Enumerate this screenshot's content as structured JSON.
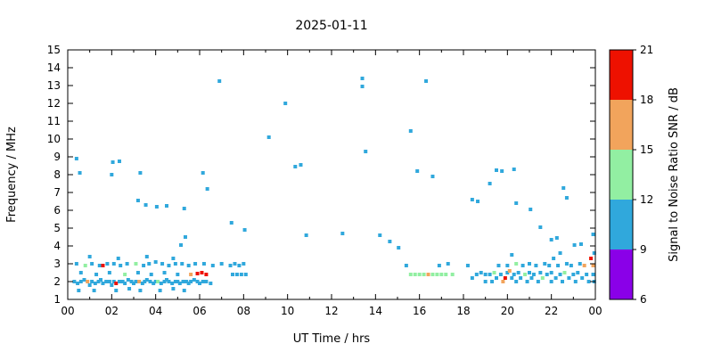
{
  "chart_data": {
    "type": "scatter",
    "title": "2025-01-11",
    "xlabel": "UT Time / hrs",
    "ylabel": "Frequency / MHz",
    "xlim": [
      0,
      24
    ],
    "ylim": [
      1,
      15
    ],
    "grid": false,
    "xticks": [
      0,
      2,
      4,
      6,
      8,
      10,
      12,
      14,
      16,
      18,
      20,
      22,
      24
    ],
    "xticklabels": [
      "00",
      "02",
      "04",
      "06",
      "08",
      "10",
      "12",
      "14",
      "16",
      "18",
      "20",
      "22",
      "00"
    ],
    "yticks": [
      1,
      2,
      3,
      4,
      5,
      6,
      7,
      8,
      9,
      10,
      11,
      12,
      13,
      14,
      15
    ],
    "colorbar": {
      "label": "Signal to Noise Ratio SNR / dB",
      "min": 6,
      "max": 21,
      "ticks": [
        6,
        9,
        12,
        15,
        18,
        21
      ],
      "position": "right",
      "bands": [
        {
          "from": 6,
          "to": 9,
          "color": "#8A00E8"
        },
        {
          "from": 9,
          "to": 12,
          "color": "#30A8DC"
        },
        {
          "from": 12,
          "to": 15,
          "color": "#92EFA2"
        },
        {
          "from": 15,
          "to": 18,
          "color": "#F2A45C"
        },
        {
          "from": 18,
          "to": 21,
          "color": "#EE1100"
        }
      ]
    },
    "points": [
      [
        0.4,
        8.9,
        10
      ],
      [
        0.55,
        8.1,
        10
      ],
      [
        2.05,
        8.7,
        10
      ],
      [
        2.35,
        8.75,
        10
      ],
      [
        2.0,
        8.0,
        10
      ],
      [
        3.3,
        8.1,
        10
      ],
      [
        3.2,
        6.55,
        10
      ],
      [
        3.55,
        6.3,
        10
      ],
      [
        4.05,
        6.2,
        10
      ],
      [
        4.5,
        6.25,
        10
      ],
      [
        5.3,
        6.1,
        10
      ],
      [
        6.15,
        8.1,
        10
      ],
      [
        6.35,
        7.2,
        10
      ],
      [
        6.9,
        13.25,
        10
      ],
      [
        5.15,
        4.05,
        10
      ],
      [
        5.35,
        4.5,
        10
      ],
      [
        7.45,
        5.3,
        10
      ],
      [
        8.05,
        4.9,
        10
      ],
      [
        9.15,
        10.1,
        10
      ],
      [
        9.9,
        12.0,
        10
      ],
      [
        10.35,
        8.45,
        10
      ],
      [
        10.6,
        8.55,
        10
      ],
      [
        10.85,
        4.6,
        10
      ],
      [
        12.5,
        4.7,
        10
      ],
      [
        13.4,
        13.4,
        10
      ],
      [
        13.4,
        12.95,
        10
      ],
      [
        13.55,
        9.3,
        10
      ],
      [
        14.2,
        4.6,
        10
      ],
      [
        14.65,
        4.25,
        10
      ],
      [
        15.05,
        3.9,
        10
      ],
      [
        15.6,
        10.45,
        10
      ],
      [
        15.9,
        8.2,
        10
      ],
      [
        16.3,
        13.25,
        10
      ],
      [
        16.6,
        7.9,
        10
      ],
      [
        18.4,
        6.6,
        10
      ],
      [
        18.65,
        6.5,
        10
      ],
      [
        19.2,
        7.5,
        10
      ],
      [
        19.5,
        8.25,
        10
      ],
      [
        19.75,
        8.2,
        10
      ],
      [
        20.3,
        8.3,
        10
      ],
      [
        20.4,
        6.4,
        10
      ],
      [
        21.05,
        6.05,
        10
      ],
      [
        21.5,
        5.05,
        10
      ],
      [
        22.0,
        4.35,
        10
      ],
      [
        22.25,
        4.45,
        10
      ],
      [
        22.55,
        7.25,
        10
      ],
      [
        22.7,
        6.7,
        10
      ],
      [
        23.05,
        4.05,
        10
      ],
      [
        23.35,
        4.1,
        10
      ],
      [
        23.9,
        4.65,
        10
      ],
      [
        23.95,
        3.6,
        10
      ],
      [
        0.3,
        2.0,
        10
      ],
      [
        0.45,
        1.9,
        10
      ],
      [
        0.6,
        2.0,
        10
      ],
      [
        0.75,
        2.1,
        10
      ],
      [
        0.9,
        2.0,
        16
      ],
      [
        1.0,
        1.8,
        10
      ],
      [
        1.1,
        2.0,
        10
      ],
      [
        1.25,
        1.9,
        10
      ],
      [
        1.4,
        2.0,
        10
      ],
      [
        1.5,
        2.1,
        10
      ],
      [
        1.6,
        1.9,
        10
      ],
      [
        1.75,
        2.0,
        10
      ],
      [
        1.9,
        2.0,
        10
      ],
      [
        2.0,
        1.8,
        10
      ],
      [
        2.1,
        2.0,
        10
      ],
      [
        2.2,
        1.9,
        19.5
      ],
      [
        2.35,
        2.0,
        10
      ],
      [
        2.5,
        2.0,
        10
      ],
      [
        2.6,
        1.9,
        10
      ],
      [
        2.75,
        2.1,
        10
      ],
      [
        2.9,
        2.0,
        10
      ],
      [
        3.0,
        1.9,
        10
      ],
      [
        3.1,
        2.0,
        10
      ],
      [
        3.25,
        2.0,
        16
      ],
      [
        3.4,
        1.9,
        10
      ],
      [
        3.5,
        2.0,
        10
      ],
      [
        3.6,
        2.1,
        10
      ],
      [
        3.75,
        2.0,
        10
      ],
      [
        3.9,
        1.9,
        10
      ],
      [
        4.0,
        2.0,
        10
      ],
      [
        4.1,
        2.0,
        13
      ],
      [
        4.25,
        1.9,
        10
      ],
      [
        4.4,
        2.0,
        10
      ],
      [
        4.5,
        2.1,
        10
      ],
      [
        4.6,
        2.0,
        10
      ],
      [
        4.75,
        1.9,
        10
      ],
      [
        4.9,
        2.0,
        10
      ],
      [
        5.0,
        2.0,
        10
      ],
      [
        5.1,
        1.9,
        10
      ],
      [
        5.25,
        2.0,
        10
      ],
      [
        5.4,
        2.0,
        10
      ],
      [
        5.5,
        1.9,
        10
      ],
      [
        5.6,
        2.0,
        10
      ],
      [
        5.75,
        2.1,
        10
      ],
      [
        5.9,
        2.0,
        10
      ],
      [
        6.0,
        1.9,
        10
      ],
      [
        6.15,
        2.0,
        10
      ],
      [
        6.3,
        2.0,
        10
      ],
      [
        6.5,
        1.9,
        10
      ],
      [
        0.5,
        1.5,
        10
      ],
      [
        1.2,
        1.5,
        10
      ],
      [
        2.2,
        1.5,
        10
      ],
      [
        2.8,
        1.6,
        10
      ],
      [
        3.3,
        1.5,
        10
      ],
      [
        4.2,
        1.5,
        10
      ],
      [
        4.8,
        1.6,
        10
      ],
      [
        5.3,
        1.5,
        10
      ],
      [
        0.6,
        2.5,
        10
      ],
      [
        1.3,
        2.4,
        10
      ],
      [
        1.9,
        2.5,
        10
      ],
      [
        2.6,
        2.4,
        13
      ],
      [
        3.2,
        2.5,
        10
      ],
      [
        3.8,
        2.4,
        10
      ],
      [
        4.4,
        2.5,
        10
      ],
      [
        5.0,
        2.4,
        10
      ],
      [
        5.6,
        2.4,
        16
      ],
      [
        5.9,
        2.45,
        19.5
      ],
      [
        6.1,
        2.5,
        19.5
      ],
      [
        6.3,
        2.4,
        19.5
      ],
      [
        7.5,
        2.4,
        10
      ],
      [
        7.7,
        2.4,
        10
      ],
      [
        7.9,
        2.4,
        10
      ],
      [
        8.1,
        2.4,
        10
      ],
      [
        0.4,
        3.0,
        10
      ],
      [
        0.8,
        2.9,
        13
      ],
      [
        1.1,
        3.0,
        10
      ],
      [
        1.45,
        2.9,
        10
      ],
      [
        1.6,
        2.9,
        19.5
      ],
      [
        1.8,
        3.0,
        10
      ],
      [
        2.1,
        3.0,
        10
      ],
      [
        2.4,
        2.9,
        10
      ],
      [
        2.7,
        3.0,
        10
      ],
      [
        3.1,
        3.0,
        13
      ],
      [
        3.45,
        2.9,
        10
      ],
      [
        3.7,
        3.0,
        10
      ],
      [
        4.0,
        3.1,
        10
      ],
      [
        4.3,
        3.0,
        10
      ],
      [
        4.6,
        2.9,
        10
      ],
      [
        4.9,
        3.0,
        10
      ],
      [
        5.2,
        3.0,
        10
      ],
      [
        5.5,
        2.9,
        10
      ],
      [
        5.8,
        3.0,
        10
      ],
      [
        6.2,
        3.0,
        10
      ],
      [
        6.6,
        2.9,
        10
      ],
      [
        7.0,
        3.0,
        10
      ],
      [
        7.4,
        2.9,
        10
      ],
      [
        7.6,
        3.0,
        10
      ],
      [
        7.8,
        2.9,
        10
      ],
      [
        8.0,
        3.0,
        10
      ],
      [
        1.0,
        3.4,
        10
      ],
      [
        2.3,
        3.3,
        10
      ],
      [
        3.6,
        3.4,
        10
      ],
      [
        4.8,
        3.3,
        10
      ],
      [
        15.4,
        2.9,
        10
      ],
      [
        15.6,
        2.4,
        13
      ],
      [
        15.8,
        2.4,
        13
      ],
      [
        16.0,
        2.4,
        13
      ],
      [
        16.2,
        2.4,
        13
      ],
      [
        16.4,
        2.4,
        16
      ],
      [
        16.6,
        2.4,
        13
      ],
      [
        16.8,
        2.4,
        13
      ],
      [
        17.0,
        2.4,
        13
      ],
      [
        17.2,
        2.4,
        13
      ],
      [
        17.5,
        2.4,
        13
      ],
      [
        16.9,
        2.9,
        10
      ],
      [
        17.3,
        3.0,
        10
      ],
      [
        18.2,
        2.9,
        10
      ],
      [
        18.4,
        2.2,
        10
      ],
      [
        18.6,
        2.4,
        10
      ],
      [
        18.8,
        2.5,
        10
      ],
      [
        19.0,
        2.4,
        10
      ],
      [
        19.0,
        2.0,
        10
      ],
      [
        19.2,
        2.4,
        10
      ],
      [
        19.3,
        2.0,
        10
      ],
      [
        19.4,
        2.5,
        13
      ],
      [
        19.5,
        2.2,
        10
      ],
      [
        19.6,
        2.9,
        10
      ],
      [
        19.7,
        2.4,
        10
      ],
      [
        19.8,
        2.0,
        16
      ],
      [
        19.9,
        2.2,
        19.5
      ],
      [
        20.0,
        2.5,
        10
      ],
      [
        20.0,
        2.9,
        10
      ],
      [
        20.1,
        2.6,
        16
      ],
      [
        20.2,
        2.2,
        10
      ],
      [
        20.2,
        3.5,
        10
      ],
      [
        20.3,
        2.4,
        10
      ],
      [
        20.4,
        2.0,
        10
      ],
      [
        20.4,
        3.0,
        13
      ],
      [
        20.5,
        2.5,
        10
      ],
      [
        20.6,
        2.2,
        10
      ],
      [
        20.7,
        2.9,
        10
      ],
      [
        20.8,
        2.4,
        13
      ],
      [
        20.9,
        2.0,
        10
      ],
      [
        21.0,
        2.5,
        10
      ],
      [
        21.0,
        3.0,
        10
      ],
      [
        21.1,
        2.2,
        10
      ],
      [
        21.2,
        2.4,
        10
      ],
      [
        21.3,
        2.9,
        10
      ],
      [
        21.4,
        2.0,
        10
      ],
      [
        21.5,
        2.5,
        10
      ],
      [
        21.6,
        2.2,
        13
      ],
      [
        21.7,
        3.0,
        10
      ],
      [
        21.8,
        2.4,
        10
      ],
      [
        21.9,
        2.9,
        10
      ],
      [
        22.0,
        2.0,
        10
      ],
      [
        22.0,
        2.5,
        10
      ],
      [
        22.1,
        3.3,
        10
      ],
      [
        22.2,
        2.2,
        10
      ],
      [
        22.3,
        2.9,
        10
      ],
      [
        22.4,
        2.4,
        10
      ],
      [
        22.4,
        3.6,
        10
      ],
      [
        22.5,
        2.0,
        10
      ],
      [
        22.6,
        2.5,
        13
      ],
      [
        22.7,
        3.0,
        10
      ],
      [
        22.8,
        2.2,
        10
      ],
      [
        22.9,
        2.9,
        10
      ],
      [
        23.0,
        2.4,
        10
      ],
      [
        23.1,
        2.0,
        10
      ],
      [
        23.2,
        2.5,
        10
      ],
      [
        23.3,
        3.0,
        10
      ],
      [
        23.4,
        2.2,
        10
      ],
      [
        23.5,
        2.9,
        16
      ],
      [
        23.6,
        2.4,
        10
      ],
      [
        23.7,
        2.0,
        10
      ],
      [
        23.8,
        3.3,
        19.5
      ],
      [
        23.9,
        2.9,
        16
      ],
      [
        23.9,
        2.4,
        10
      ],
      [
        23.95,
        2.0,
        10
      ]
    ]
  }
}
